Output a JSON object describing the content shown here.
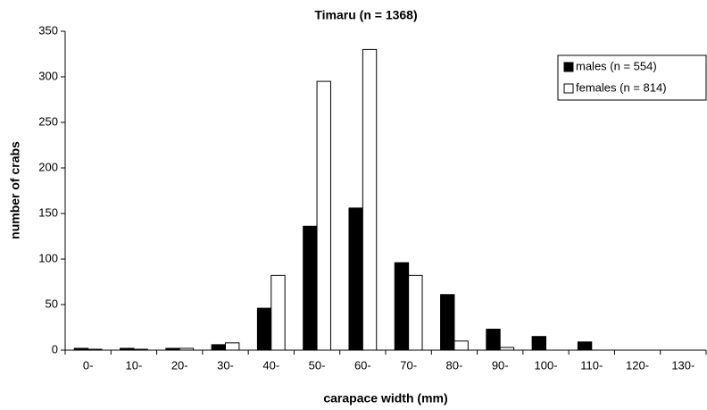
{
  "chart_data": {
    "type": "bar",
    "title": "Timaru (n = 1368)",
    "x_label": "carapace width (mm)",
    "y_label": "number of crabs",
    "categories": [
      "0-",
      "10-",
      "20-",
      "30-",
      "40-",
      "50-",
      "60-",
      "70-",
      "80-",
      "90-",
      "100-",
      "110-",
      "120-",
      "130-"
    ],
    "series": [
      {
        "name": "males (n = 554)",
        "color": "#000000",
        "values": [
          2,
          2,
          2,
          6,
          46,
          136,
          156,
          96,
          61,
          23,
          15,
          9,
          0,
          0
        ]
      },
      {
        "name": "females (n = 814)",
        "color": "#ffffff",
        "values": [
          1,
          1,
          2,
          8,
          82,
          295,
          330,
          82,
          10,
          3,
          0,
          0,
          0,
          0
        ]
      }
    ],
    "ylim": [
      0,
      350
    ],
    "yticks": [
      0,
      50,
      100,
      150,
      200,
      250,
      300,
      350
    ],
    "grid": false,
    "legend": "upper right"
  }
}
